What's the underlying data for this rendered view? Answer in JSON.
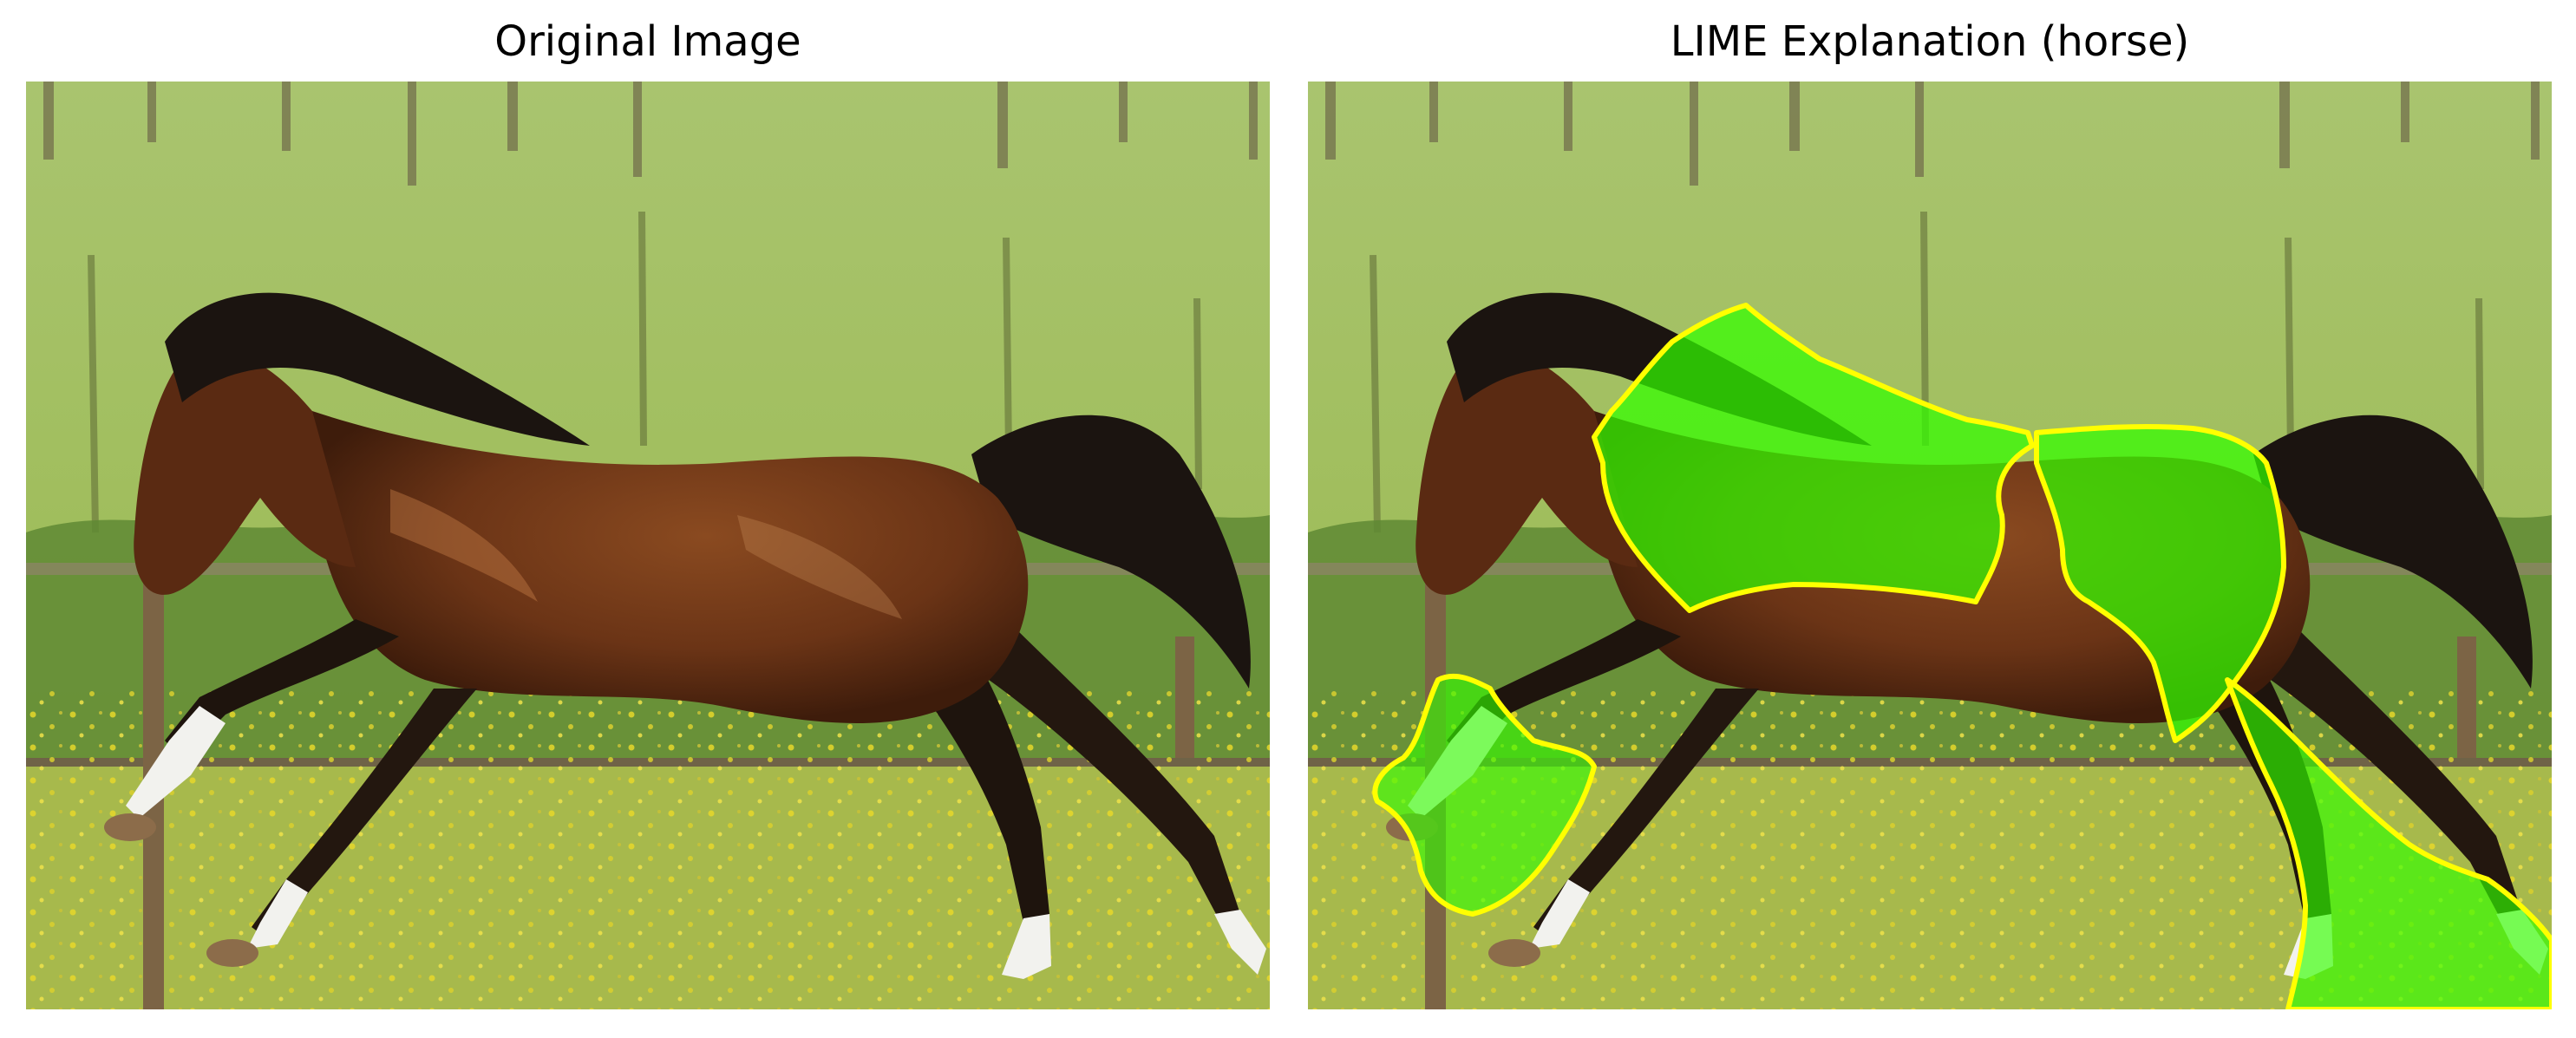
{
  "figure": {
    "panels": [
      {
        "title": "Original Image",
        "subject": "brown horse galloping in a grassy paddock with yellow flowers and a wooden fence"
      },
      {
        "title": "LIME Explanation (horse)",
        "subject": "same horse image with green superpixel overlay marking regions supporting the 'horse' class",
        "overlay_color": "#33ff00",
        "boundary_color": "#ffff00"
      }
    ]
  },
  "colors": {
    "background": "#ffffff",
    "grass_top": "#a6c46a",
    "grass_bottom": "#a7b84a",
    "hedge": "#5f8a34",
    "horse_coat": "#6b3416",
    "mane_tail": "#1b1410",
    "lime_overlay": "#33ff00",
    "boundary": "#ffff00"
  }
}
